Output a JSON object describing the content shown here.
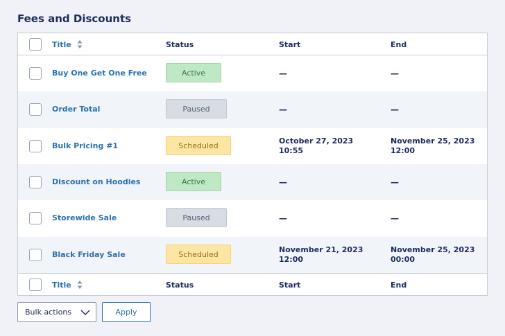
{
  "page": {
    "title": "Fees and Discounts"
  },
  "table": {
    "headers": {
      "title": "Title",
      "status": "Status",
      "start": "Start",
      "end": "End"
    },
    "rows": [
      {
        "title": "Buy One Get One Free",
        "status": "Active",
        "start_line1": "—",
        "start_line2": "",
        "end_line1": "—",
        "end_line2": ""
      },
      {
        "title": "Order Total",
        "status": "Paused",
        "start_line1": "—",
        "start_line2": "",
        "end_line1": "—",
        "end_line2": ""
      },
      {
        "title": "Bulk Pricing #1",
        "status": "Scheduled",
        "start_line1": "October 27, 2023",
        "start_line2": "10:55",
        "end_line1": "November 25, 2023",
        "end_line2": "12:00"
      },
      {
        "title": "Discount on Hoodies",
        "status": "Active",
        "start_line1": "—",
        "start_line2": "",
        "end_line1": "—",
        "end_line2": ""
      },
      {
        "title": "Storewide Sale",
        "status": "Paused",
        "start_line1": "—",
        "start_line2": "",
        "end_line1": "—",
        "end_line2": ""
      },
      {
        "title": "Black Friday Sale",
        "status": "Scheduled",
        "start_line1": "November 21, 2023",
        "start_line2": "12:00",
        "end_line1": "November 25, 2023",
        "end_line2": "00:00"
      }
    ]
  },
  "footer": {
    "bulk_actions_label": "Bulk actions",
    "apply_label": "Apply"
  },
  "icons": {
    "sort": "sort-arrows-icon",
    "chevron": "chevron-down-icon"
  },
  "colors": {
    "link": "#2a71b3",
    "active": "#bfe8c4",
    "paused": "#d8dce3",
    "scheduled": "#fde6a4"
  }
}
